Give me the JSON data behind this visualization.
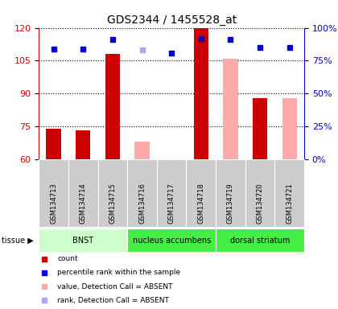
{
  "title": "GDS2344 / 1455528_at",
  "samples": [
    "GSM134713",
    "GSM134714",
    "GSM134715",
    "GSM134716",
    "GSM134717",
    "GSM134718",
    "GSM134719",
    "GSM134720",
    "GSM134721"
  ],
  "count_present": [
    74,
    73,
    108,
    null,
    null,
    120,
    null,
    88,
    null
  ],
  "count_absent": [
    null,
    null,
    null,
    68,
    60,
    null,
    106,
    null,
    88
  ],
  "rank_present": [
    84,
    84,
    91,
    null,
    81,
    92,
    91,
    85,
    85
  ],
  "rank_absent": [
    null,
    null,
    null,
    83,
    null,
    null,
    null,
    null,
    null
  ],
  "ylim_left": [
    60,
    120
  ],
  "ylim_right": [
    0,
    100
  ],
  "yticks_left": [
    60,
    75,
    90,
    105,
    120
  ],
  "yticks_right": [
    0,
    25,
    50,
    75,
    100
  ],
  "ytick_labels_right": [
    "0%",
    "25%",
    "50%",
    "75%",
    "100%"
  ],
  "tissues": [
    {
      "label": "BNST",
      "start": 0,
      "end": 3,
      "color": "#ccffcc"
    },
    {
      "label": "nucleus accumbens",
      "start": 3,
      "end": 6,
      "color": "#44ee44"
    },
    {
      "label": "dorsal striatum",
      "start": 6,
      "end": 9,
      "color": "#44ee44"
    }
  ],
  "bar_width": 0.5,
  "count_present_color": "#cc0000",
  "count_absent_color": "#ffaaaa",
  "rank_present_color": "#0000cc",
  "rank_absent_color": "#aaaaee",
  "bg_color": "#ffffff",
  "left_axis_color": "#cc0000",
  "right_axis_color": "#0000cc",
  "legend_items": [
    {
      "color": "#cc0000",
      "label": "count"
    },
    {
      "color": "#0000cc",
      "label": "percentile rank within the sample"
    },
    {
      "color": "#ffaaaa",
      "label": "value, Detection Call = ABSENT"
    },
    {
      "color": "#aaaaee",
      "label": "rank, Detection Call = ABSENT"
    }
  ]
}
